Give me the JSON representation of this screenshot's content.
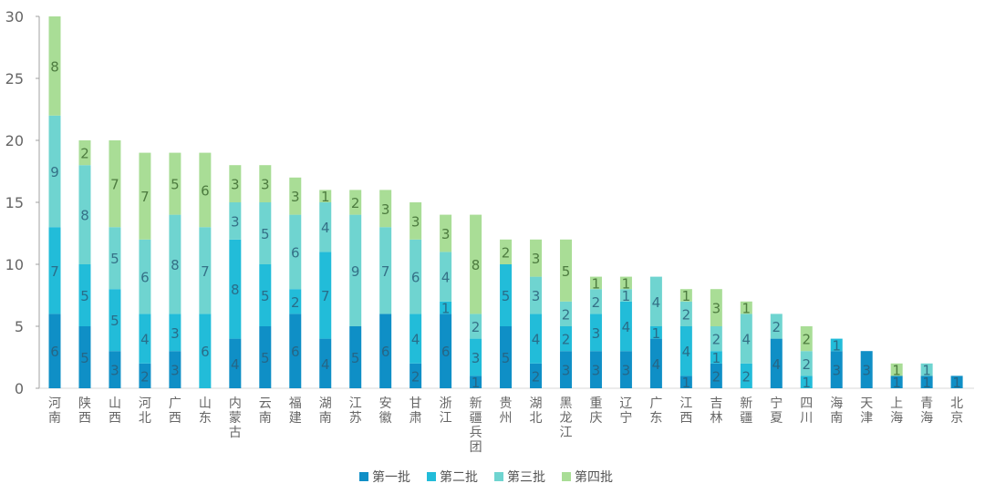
{
  "chart_data": {
    "type": "bar",
    "stacked": true,
    "title": "",
    "xlabel": "",
    "ylabel": "",
    "ylim": [
      0,
      30
    ],
    "yticks": [
      0,
      5,
      10,
      15,
      20,
      25,
      30
    ],
    "grid": false,
    "legend_position": "bottom",
    "categories": [
      "河南",
      "陕西",
      "山西",
      "河北",
      "广西",
      "山东",
      "内蒙古",
      "云南",
      "福建",
      "湖南",
      "江苏",
      "安徽",
      "甘肃",
      "浙江",
      "新疆兵团",
      "贵州",
      "湖北",
      "黑龙江",
      "重庆",
      "辽宁",
      "广东",
      "江西",
      "吉林",
      "新疆",
      "宁夏",
      "四川",
      "海南",
      "天津",
      "上海",
      "青海",
      "北京"
    ],
    "series": [
      {
        "name": "第一批",
        "color": "#0f8fc6",
        "values": [
          6,
          5,
          3,
          2,
          3,
          0,
          4,
          5,
          6,
          4,
          5,
          6,
          2,
          6,
          1,
          5,
          2,
          3,
          3,
          3,
          4,
          1,
          2,
          0,
          4,
          0,
          3,
          3,
          1,
          1,
          1
        ]
      },
      {
        "name": "第二批",
        "color": "#22bcd9",
        "values": [
          7,
          5,
          5,
          4,
          3,
          6,
          8,
          5,
          2,
          7,
          0,
          0,
          4,
          1,
          3,
          5,
          4,
          2,
          3,
          4,
          1,
          4,
          1,
          2,
          0,
          1,
          1,
          0,
          0,
          0,
          0
        ]
      },
      {
        "name": "第三批",
        "color": "#6fd4d0",
        "values": [
          9,
          8,
          5,
          6,
          8,
          7,
          3,
          5,
          6,
          4,
          9,
          7,
          6,
          4,
          2,
          0,
          3,
          2,
          2,
          1,
          4,
          2,
          2,
          4,
          2,
          2,
          0,
          0,
          0,
          1,
          0
        ]
      },
      {
        "name": "第四批",
        "color": "#a9dd96",
        "values": [
          8,
          2,
          7,
          7,
          5,
          6,
          3,
          3,
          3,
          1,
          2,
          3,
          3,
          3,
          8,
          2,
          3,
          5,
          1,
          1,
          0,
          1,
          3,
          1,
          0,
          2,
          0,
          0,
          1,
          0,
          0
        ]
      }
    ]
  }
}
